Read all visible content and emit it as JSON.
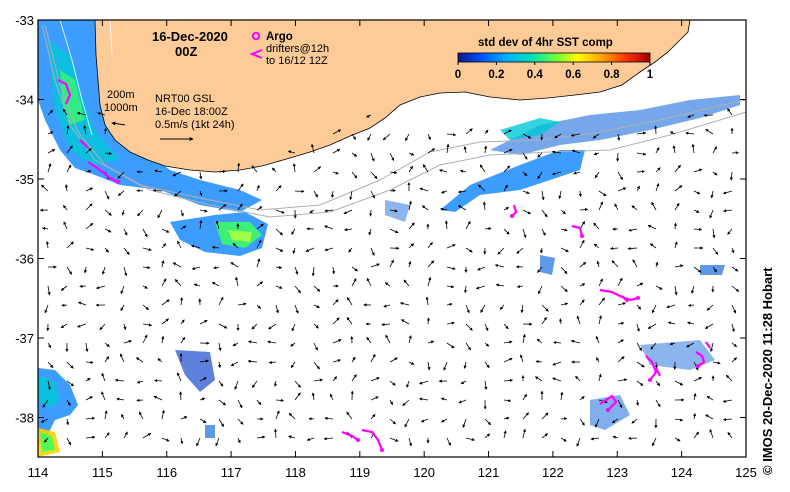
{
  "title": {
    "date": "16-Dec-2020",
    "time": "00Z"
  },
  "legend_argo": {
    "argo_label": "Argo",
    "drifters_line1": "drifters@12h",
    "drifters_line2": "to 16/12 12Z"
  },
  "contours": {
    "line1": "200m",
    "line2": "1000m"
  },
  "currents": {
    "source": "NRT00 GSL",
    "valid": "16-Dec 18:00Z",
    "scale": "0.5m/s (1kt 24h)"
  },
  "colorbar": {
    "title": "std dev of 4hr SST comp",
    "ticks": [
      "0",
      "0.2",
      "0.4",
      "0.6",
      "0.8",
      "1"
    ],
    "colors": [
      "#0a1a8c",
      "#0050ff",
      "#00b0ff",
      "#00e0c0",
      "#60ff40",
      "#ffff00",
      "#ffa000",
      "#ff3000",
      "#a00000"
    ]
  },
  "axes": {
    "x_ticks": [
      "114",
      "115",
      "116",
      "117",
      "118",
      "119",
      "120",
      "121",
      "122",
      "123",
      "124",
      "125"
    ],
    "y_ticks": [
      "-33",
      "-34",
      "-35",
      "-36",
      "-37",
      "-38"
    ]
  },
  "credit": "© IMOS 20-Dec-2020 11:28 Hobart",
  "colors": {
    "land": "#fdcb98",
    "drifter": "#ff00ff"
  }
}
